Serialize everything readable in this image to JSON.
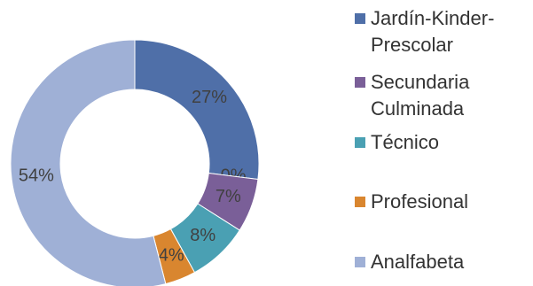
{
  "chart_data": {
    "type": "donut",
    "categories": [
      "Jardín-Kinder-Prescolar",
      null,
      "Secundaria Culminada",
      "Técnico",
      "Profesional",
      "Analfabeta"
    ],
    "values": [
      27,
      0,
      7,
      8,
      4,
      54
    ],
    "value_labels": [
      "27%",
      "0%",
      "7%",
      "8%",
      "4%",
      "54%"
    ],
    "colors": [
      "#4f6fa8",
      null,
      "#7a5f98",
      "#4aa0b3",
      "#d9862f",
      "#9fb0d6"
    ],
    "legend": "right"
  }
}
